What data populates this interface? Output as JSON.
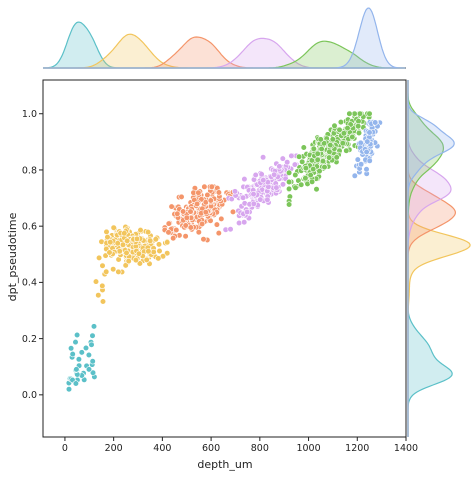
{
  "chart_data": {
    "type": "scatter",
    "subtype": "jointplot (scatter with marginal KDE)",
    "xlabel": "depth_um",
    "ylabel": "dpt_pseudotime",
    "xlim": [
      -90,
      1400
    ],
    "ylim": [
      -0.15,
      1.12
    ],
    "xticks": [
      0,
      200,
      400,
      600,
      800,
      1000,
      1200,
      1400
    ],
    "yticks": [
      0.0,
      0.2,
      0.4,
      0.6,
      0.8,
      1.0
    ],
    "xtick_labels": [
      "0",
      "200",
      "400",
      "600",
      "800",
      "1000",
      "1200",
      "1400"
    ],
    "ytick_labels": [
      "0.0",
      "0.2",
      "0.4",
      "0.6",
      "0.8",
      "1.0"
    ],
    "grid": false,
    "legend": "none",
    "series": [
      {
        "color": "#5bc0c8",
        "x_range": [
          15,
          140
        ],
        "y_range": [
          0.02,
          0.35
        ],
        "approx_center": [
          70,
          0.12
        ]
      },
      {
        "color": "#f2c55c",
        "x_range": [
          80,
          420
        ],
        "y_range": [
          0.18,
          0.62
        ],
        "approx_center": [
          270,
          0.53
        ]
      },
      {
        "color": "#f4956a",
        "x_range": [
          410,
          690
        ],
        "y_range": [
          0.55,
          0.74
        ],
        "approx_center": [
          540,
          0.65
        ]
      },
      {
        "color": "#d7a6ee",
        "x_range": [
          660,
          950
        ],
        "y_range": [
          0.55,
          0.85
        ],
        "approx_center": [
          810,
          0.74
        ]
      },
      {
        "color": "#7cc55a",
        "x_range": [
          920,
          1250
        ],
        "y_range": [
          0.57,
          1.0
        ],
        "approx_center": [
          1080,
          0.87
        ]
      },
      {
        "color": "#93b5ec",
        "x_range": [
          1190,
          1300
        ],
        "y_range": [
          0.64,
          0.97
        ],
        "approx_center": [
          1250,
          0.9
        ]
      }
    ]
  }
}
